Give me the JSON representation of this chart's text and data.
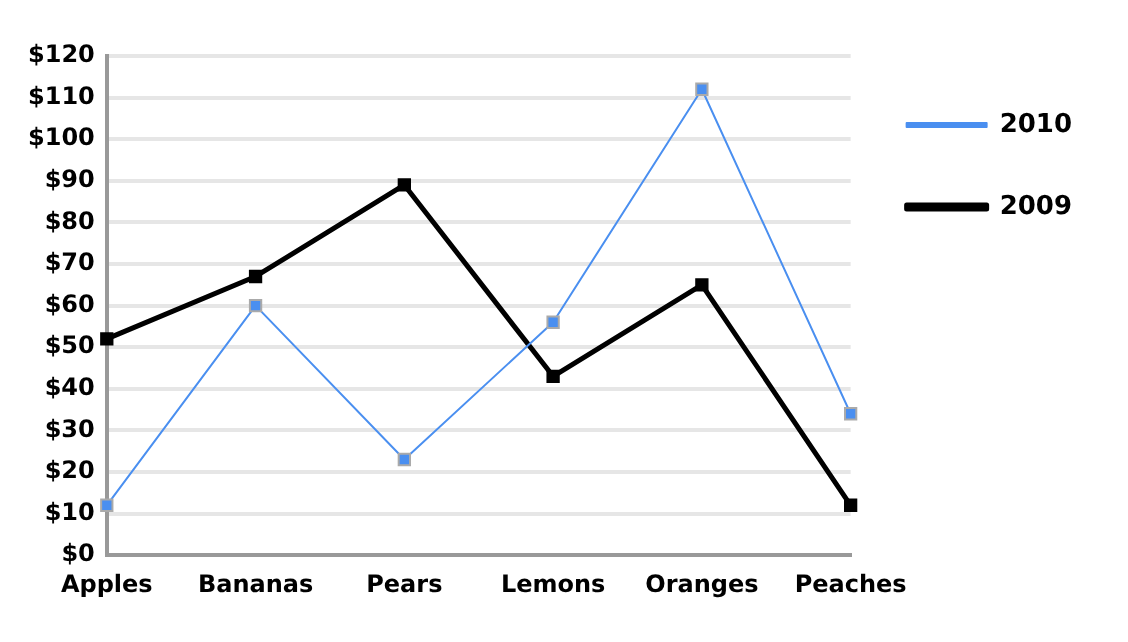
{
  "chart_data": {
    "type": "line",
    "categories": [
      "Apples",
      "Bananas",
      "Pears",
      "Lemons",
      "Oranges",
      "Peaches"
    ],
    "series": [
      {
        "name": "2010",
        "color": "#4a8ff0",
        "values": [
          12,
          60,
          23,
          56,
          112,
          34
        ]
      },
      {
        "name": "2009",
        "color": "#000000",
        "values": [
          52,
          67,
          89,
          43,
          65,
          12
        ]
      }
    ],
    "ylim": [
      0,
      120
    ],
    "yticks": [
      {
        "value": 0,
        "label": "$0"
      },
      {
        "value": 10,
        "label": "$10"
      },
      {
        "value": 20,
        "label": "$20"
      },
      {
        "value": 30,
        "label": "$30"
      },
      {
        "value": 40,
        "label": "$40"
      },
      {
        "value": 50,
        "label": "$50"
      },
      {
        "value": 60,
        "label": "$60"
      },
      {
        "value": 70,
        "label": "$70"
      },
      {
        "value": 80,
        "label": "$80"
      },
      {
        "value": 90,
        "label": "$90"
      },
      {
        "value": 100,
        "label": "$100"
      },
      {
        "value": 110,
        "label": "$110"
      },
      {
        "value": 120,
        "label": "$120"
      }
    ],
    "grid": "y",
    "legend": "top right",
    "marker": "square",
    "line_style": "solid"
  }
}
